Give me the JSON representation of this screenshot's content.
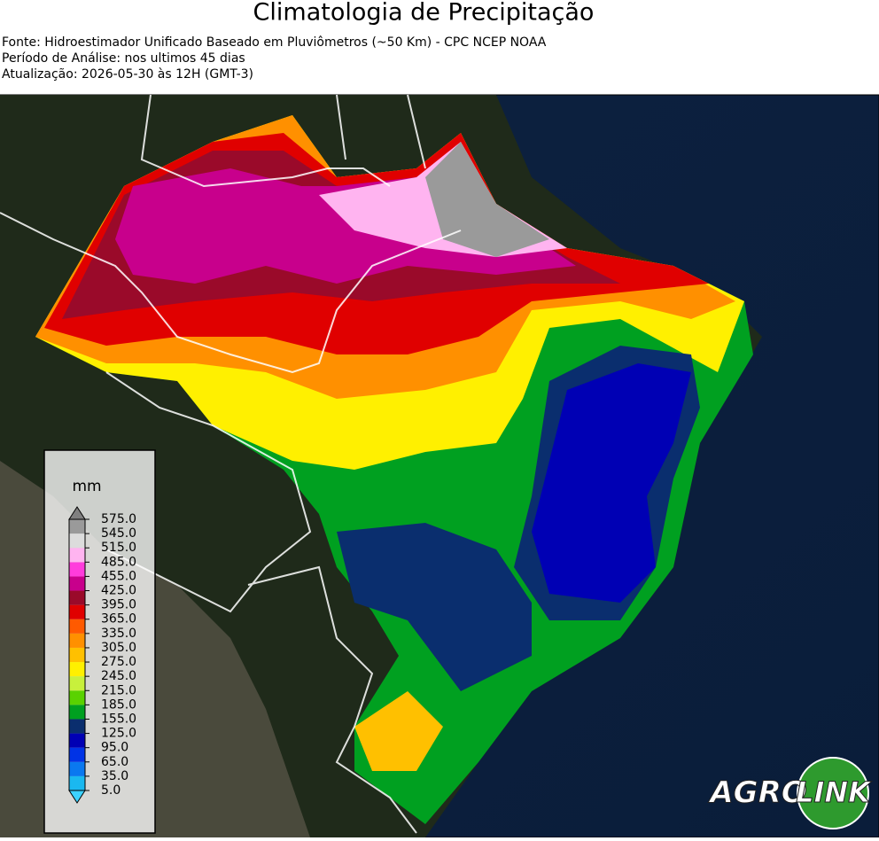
{
  "header": {
    "title": "Climatologia de Precipitação",
    "lines": [
      "Fonte: Hidroestimador Unificado Baseado em Pluviômetros (~50 Km) - CPC NCEP NOAA",
      "Período de Análise: nos ultimos 45 dias",
      "Atualização: 2026-05-30 às 12H (GMT-3)"
    ]
  },
  "legend": {
    "unit": "mm",
    "ticks": [
      {
        "value": 5,
        "label": "5.0"
      },
      {
        "value": 35,
        "label": "35.0"
      },
      {
        "value": 65,
        "label": "65.0"
      },
      {
        "value": 95,
        "label": "95.0"
      },
      {
        "value": 125,
        "label": "125.0"
      },
      {
        "value": 155,
        "label": "155.0"
      },
      {
        "value": 185,
        "label": "185.0"
      },
      {
        "value": 215,
        "label": "215.0"
      },
      {
        "value": 245,
        "label": "245.0"
      },
      {
        "value": 275,
        "label": "275.0"
      },
      {
        "value": 305,
        "label": "305.0"
      },
      {
        "value": 335,
        "label": "335.0"
      },
      {
        "value": 365,
        "label": "365.0"
      },
      {
        "value": 395,
        "label": "395.0"
      },
      {
        "value": 425,
        "label": "425.0"
      },
      {
        "value": 455,
        "label": "455.0"
      },
      {
        "value": 485,
        "label": "485.0"
      },
      {
        "value": 515,
        "label": "515.0"
      },
      {
        "value": 545,
        "label": "545.0"
      },
      {
        "value": 575,
        "label": "575.0"
      }
    ],
    "colors": [
      "#1ab8f0",
      "#0a78f0",
      "#0033e6",
      "#0000b4",
      "#0a2e6e",
      "#00a020",
      "#5ad200",
      "#c8f03c",
      "#fff000",
      "#ffc000",
      "#ff9000",
      "#ff5a00",
      "#e00000",
      "#9a0a2a",
      "#c8008c",
      "#ff3cdc",
      "#ffb4f0",
      "#dcdcdc",
      "#9a9a9a"
    ],
    "under_color": "#3cd2ff",
    "over_color": "#808080"
  },
  "logo": {
    "left": "AGRO",
    "right": "LINK"
  }
}
